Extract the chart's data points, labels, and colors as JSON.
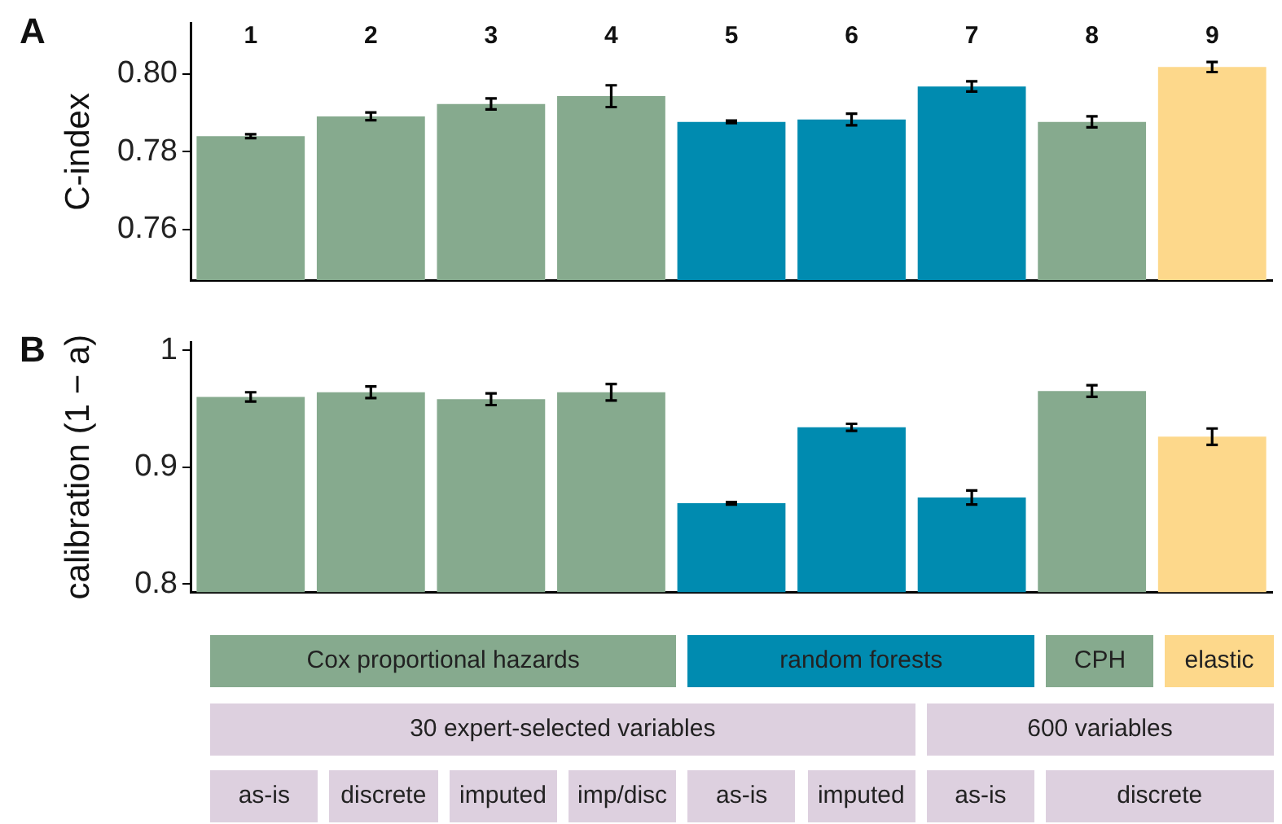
{
  "chart_data": [
    {
      "type": "bar",
      "title": "A",
      "ylabel": "C-index",
      "categories": [
        "1",
        "2",
        "3",
        "4",
        "5",
        "6",
        "7",
        "8",
        "9"
      ],
      "values": [
        0.784,
        0.7891,
        0.7923,
        0.7943,
        0.7877,
        0.7883,
        0.7968,
        0.7877,
        0.8018
      ],
      "errors": [
        0.0005,
        0.001,
        0.0014,
        0.0028,
        0.0003,
        0.0015,
        0.0013,
        0.0014,
        0.0013
      ],
      "colors": [
        "#86aa8e",
        "#86aa8e",
        "#86aa8e",
        "#86aa8e",
        "#008bb0",
        "#008bb0",
        "#008bb0",
        "#86aa8e",
        "#fdd88b"
      ],
      "ylim": [
        0.747,
        0.813
      ],
      "yticks": [
        0.76,
        0.78,
        {
          "value": 0.8,
          "label": "0.80"
        }
      ],
      "grid": false,
      "legend": false
    },
    {
      "type": "bar",
      "title": "B",
      "ylabel": "calibration (1 − a)",
      "categories": [
        null,
        null,
        null,
        null,
        null,
        null,
        null,
        null,
        null
      ],
      "values": [
        0.96,
        0.964,
        0.958,
        0.964,
        0.869,
        0.934,
        0.874,
        0.965,
        0.926
      ],
      "errors": [
        0.004,
        0.005,
        0.005,
        0.007,
        0.001,
        0.003,
        0.006,
        0.005,
        0.007
      ],
      "colors": [
        "#86aa8e",
        "#86aa8e",
        "#86aa8e",
        "#86aa8e",
        "#008bb0",
        "#008bb0",
        "#008bb0",
        "#86aa8e",
        "#fdd88b"
      ],
      "ylim": [
        0.793,
        1.007
      ],
      "yticks": [
        0.8,
        0.9,
        1
      ],
      "grid": false,
      "legend": false,
      "annotations": [
        "Cox proportional hazards",
        "random forests",
        "CPH",
        "elastic",
        "30 expert-selected variables",
        "600 variables",
        "as-is",
        "discrete",
        "imputed",
        "imp/disc",
        "as-is",
        "imputed",
        "as-is",
        "discrete"
      ]
    }
  ]
}
